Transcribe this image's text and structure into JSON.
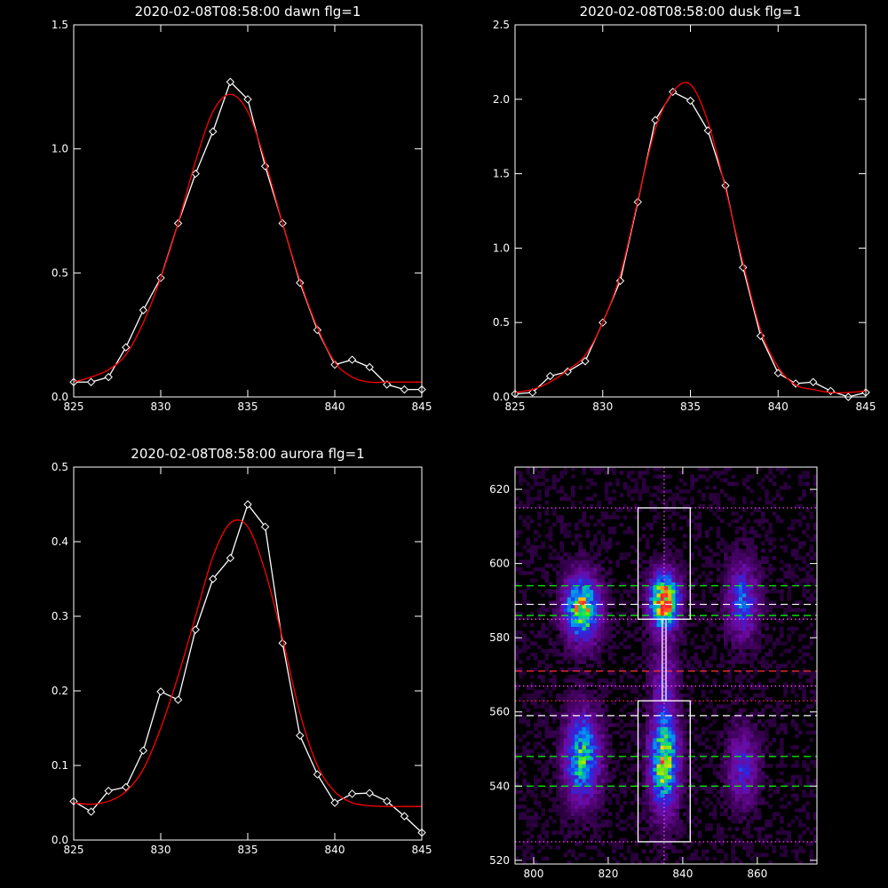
{
  "chart_data": [
    {
      "type": "line",
      "title": "2020-02-08T08:58:00 dawn flg=1",
      "xlim": [
        825,
        845
      ],
      "ylim": [
        0,
        1.5
      ],
      "xticks": [
        "825",
        "830",
        "835",
        "840",
        "845"
      ],
      "yticks": [
        "0.0",
        "0.5",
        "1.0",
        "1.5"
      ],
      "series": [
        {
          "color": "#ffffff",
          "marker": "diamond",
          "x": [
            825,
            826,
            827,
            828,
            829,
            830,
            831,
            832,
            833,
            834,
            835,
            836,
            837,
            838,
            839,
            840,
            841,
            842,
            843,
            844,
            845
          ],
          "y": [
            0.06,
            0.06,
            0.08,
            0.2,
            0.35,
            0.48,
            0.7,
            0.9,
            1.07,
            1.27,
            1.2,
            0.93,
            0.7,
            0.46,
            0.27,
            0.13,
            0.15,
            0.12,
            0.05,
            0.03,
            0.03
          ]
        },
        {
          "color": "#ff0000",
          "marker": "none",
          "x": [
            825,
            826,
            827,
            828,
            829,
            830,
            831,
            832,
            833,
            834,
            835,
            836,
            837,
            838,
            839,
            840,
            841,
            842,
            843,
            844,
            845
          ],
          "y": [
            0.06,
            0.08,
            0.11,
            0.17,
            0.3,
            0.48,
            0.7,
            0.95,
            1.15,
            1.22,
            1.15,
            0.95,
            0.7,
            0.47,
            0.28,
            0.14,
            0.08,
            0.06,
            0.06,
            0.06,
            0.06
          ]
        }
      ]
    },
    {
      "type": "line",
      "title": "2020-02-08T08:58:00 dusk flg=1",
      "xlim": [
        825,
        845
      ],
      "ylim": [
        0,
        2.5
      ],
      "xticks": [
        "825",
        "830",
        "835",
        "840",
        "845"
      ],
      "yticks": [
        "0.0",
        "0.5",
        "1.0",
        "1.5",
        "2.0",
        "2.5"
      ],
      "series": [
        {
          "color": "#ffffff",
          "marker": "diamond",
          "x": [
            825,
            826,
            827,
            828,
            829,
            830,
            831,
            832,
            833,
            834,
            835,
            836,
            837,
            838,
            839,
            840,
            841,
            842,
            843,
            844,
            845
          ],
          "y": [
            0.02,
            0.03,
            0.14,
            0.17,
            0.24,
            0.5,
            0.78,
            1.31,
            1.86,
            2.05,
            1.99,
            1.79,
            1.42,
            0.87,
            0.41,
            0.16,
            0.09,
            0.1,
            0.04,
            0.0,
            0.03
          ]
        },
        {
          "color": "#ff0000",
          "marker": "none",
          "x": [
            825,
            826,
            827,
            828,
            829,
            830,
            831,
            832,
            833,
            834,
            835,
            836,
            837,
            838,
            839,
            840,
            841,
            842,
            843,
            844,
            845
          ],
          "y": [
            0.03,
            0.05,
            0.1,
            0.18,
            0.28,
            0.5,
            0.82,
            1.32,
            1.8,
            2.05,
            2.1,
            1.85,
            1.4,
            0.9,
            0.45,
            0.2,
            0.08,
            0.05,
            0.03,
            0.03,
            0.04
          ]
        }
      ]
    },
    {
      "type": "line",
      "title": "2020-02-08T08:58:00 aurora flg=1",
      "xlim": [
        825,
        845
      ],
      "ylim": [
        0,
        0.5
      ],
      "xticks": [
        "825",
        "830",
        "835",
        "840",
        "845"
      ],
      "yticks": [
        "0.0",
        "0.1",
        "0.2",
        "0.3",
        "0.4",
        "0.5"
      ],
      "series": [
        {
          "color": "#ffffff",
          "marker": "diamond",
          "x": [
            825,
            826,
            827,
            828,
            829,
            830,
            831,
            832,
            833,
            834,
            835,
            836,
            837,
            838,
            839,
            840,
            841,
            842,
            843,
            844,
            845
          ],
          "y": [
            0.052,
            0.038,
            0.066,
            0.071,
            0.12,
            0.199,
            0.188,
            0.282,
            0.35,
            0.378,
            0.45,
            0.42,
            0.264,
            0.14,
            0.088,
            0.05,
            0.062,
            0.063,
            0.052,
            0.032,
            0.01
          ]
        },
        {
          "color": "#ff0000",
          "marker": "none",
          "x": [
            825,
            826,
            827,
            828,
            829,
            830,
            831,
            832,
            833,
            834,
            835,
            836,
            837,
            838,
            839,
            840,
            841,
            842,
            843,
            844,
            845
          ],
          "y": [
            0.05,
            0.048,
            0.052,
            0.065,
            0.095,
            0.15,
            0.22,
            0.3,
            0.38,
            0.425,
            0.42,
            0.36,
            0.27,
            0.17,
            0.1,
            0.065,
            0.05,
            0.046,
            0.045,
            0.045,
            0.045
          ]
        }
      ]
    },
    {
      "type": "heatmap",
      "title": "",
      "xlim": [
        795,
        876
      ],
      "ylim": [
        519,
        626
      ],
      "xticks": [
        "800",
        "820",
        "840",
        "860"
      ],
      "yticks": [
        "520",
        "540",
        "560",
        "580",
        "600",
        "620"
      ],
      "blobs": [
        {
          "x": 813,
          "y": 588,
          "sx": 3.2,
          "sy": 6,
          "a": 0.78
        },
        {
          "x": 813,
          "y": 548,
          "sx": 3.2,
          "sy": 8,
          "a": 0.62
        },
        {
          "x": 835,
          "y": 590,
          "sx": 2.6,
          "sy": 5,
          "a": 1.0
        },
        {
          "x": 835,
          "y": 547,
          "sx": 2.6,
          "sy": 9,
          "a": 0.78
        },
        {
          "x": 835,
          "y": 570,
          "sx": 2.4,
          "sy": 6,
          "a": 0.22
        },
        {
          "x": 856,
          "y": 590,
          "sx": 2.8,
          "sy": 7,
          "a": 0.42
        },
        {
          "x": 856,
          "y": 545,
          "sx": 2.8,
          "sy": 7,
          "a": 0.32
        }
      ],
      "boxes": [
        {
          "x0": 828,
          "x1": 842,
          "y0": 585,
          "y1": 615,
          "color": "#ffffff"
        },
        {
          "x0": 828,
          "x1": 842,
          "y0": 525,
          "y1": 563,
          "color": "#ffffff"
        },
        {
          "x0": 834.5,
          "x1": 835.5,
          "y0": 563,
          "y1": 585,
          "color": "#ffffff"
        }
      ],
      "hlines": [
        {
          "y": 615,
          "color": "#ff55ff",
          "style": "dotted"
        },
        {
          "y": 594,
          "color": "#00ff00",
          "style": "dashed"
        },
        {
          "y": 589,
          "color": "#ffffff",
          "style": "dashed"
        },
        {
          "y": 586,
          "color": "#00ff00",
          "style": "dashed"
        },
        {
          "y": 585,
          "color": "#ff55ff",
          "style": "dotted"
        },
        {
          "y": 571,
          "color": "#ff3333",
          "style": "dashed"
        },
        {
          "y": 567,
          "color": "#ff55ff",
          "style": "dotted"
        },
        {
          "y": 563,
          "color": "#ff3333",
          "style": "dotted"
        },
        {
          "y": 559,
          "color": "#ffffff",
          "style": "dashed"
        },
        {
          "y": 548,
          "color": "#00ff00",
          "style": "dashed"
        },
        {
          "y": 540,
          "color": "#00ff00",
          "style": "dashed"
        },
        {
          "y": 525,
          "color": "#ff55ff",
          "style": "dotted"
        }
      ],
      "vlines": [
        {
          "x": 835,
          "color": "#ff55ff",
          "style": "dotted"
        }
      ]
    }
  ]
}
